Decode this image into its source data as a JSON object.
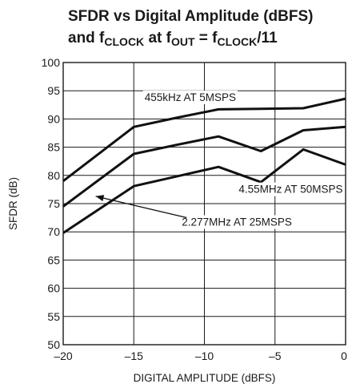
{
  "chart_data": {
    "type": "line",
    "title_parts": [
      {
        "text": "SFDR vs Digital Amplitude (dBFS)",
        "line": 1
      },
      {
        "text": "and f",
        "line": 2
      },
      {
        "text": "CLOCK",
        "line": 2,
        "sub": true
      },
      {
        "text": " at f",
        "line": 2
      },
      {
        "text": "OUT",
        "line": 2,
        "sub": true
      },
      {
        "text": " = f",
        "line": 2
      },
      {
        "text": "CLOCK",
        "line": 2,
        "sub": true
      },
      {
        "text": "/11",
        "line": 2
      }
    ],
    "xlabel": "DIGITAL AMPLITUDE (dBFS)",
    "ylabel": "SFDR (dB)",
    "xlim": [
      -20,
      0
    ],
    "ylim": [
      50,
      100
    ],
    "x_ticks": [
      -20,
      -15,
      -10,
      -5,
      0
    ],
    "x_tick_labels": [
      "–20",
      "–15",
      "–10",
      "–5",
      "0"
    ],
    "y_ticks": [
      50,
      55,
      60,
      65,
      70,
      75,
      80,
      85,
      90,
      95,
      100
    ],
    "y_tick_labels": [
      "50",
      "55",
      "60",
      "65",
      "70",
      "75",
      "80",
      "85",
      "90",
      "95",
      "100"
    ],
    "grid": true,
    "series": [
      {
        "name": "455kHz AT 5MSPS",
        "x": [
          -20,
          -15,
          -12,
          -9,
          -6,
          -3,
          0
        ],
        "y": [
          79,
          88.6,
          90.2,
          91.7,
          91.8,
          91.9,
          93.6
        ]
      },
      {
        "name": "4.55MHz AT 50MSPS",
        "x": [
          -20,
          -15,
          -12,
          -9,
          -6,
          -3,
          0
        ],
        "y": [
          74.5,
          83.8,
          85.4,
          86.9,
          84.3,
          88,
          88.6
        ]
      },
      {
        "name": "2.277MHz AT 25MSPS",
        "x": [
          -20,
          -15,
          -12,
          -9,
          -6,
          -3,
          0
        ],
        "y": [
          69.8,
          78.1,
          79.8,
          81.5,
          78.8,
          84.6,
          81.9
        ]
      }
    ],
    "annotations": [
      {
        "text": "455kHz AT 5MSPS",
        "series": 0,
        "arrow": false
      },
      {
        "text": "4.55MHz AT 50MSPS",
        "series": 1,
        "arrow": false
      },
      {
        "text": "2.277MHz AT 25MSPS",
        "series": 2,
        "arrow": true
      }
    ]
  }
}
